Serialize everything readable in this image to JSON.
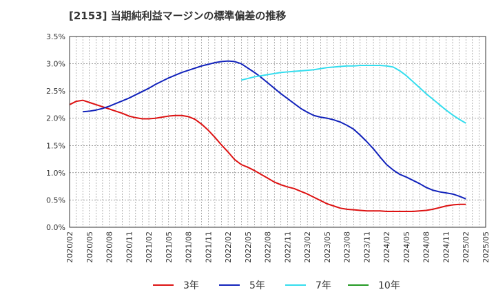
{
  "title": "[2153]  当期純利益マージンの標準偏差の推移",
  "chart_data": {
    "type": "line",
    "title": "[2153]  当期純利益マージンの標準偏差の推移",
    "xlabel": "",
    "ylabel": "",
    "x_ticks": [
      "2020/02",
      "2020/05",
      "2020/08",
      "2020/11",
      "2021/02",
      "2021/05",
      "2021/08",
      "2021/11",
      "2022/02",
      "2022/05",
      "2022/08",
      "2022/11",
      "2023/02",
      "2023/05",
      "2023/08",
      "2023/11",
      "2024/02",
      "2024/05",
      "2024/08",
      "2024/11",
      "2025/02",
      "2025/05"
    ],
    "y_ticks": [
      "0.0%",
      "0.5%",
      "1.0%",
      "1.5%",
      "2.0%",
      "2.5%",
      "3.0%",
      "3.5%"
    ],
    "ylim": [
      0,
      3.5
    ],
    "xlim": [
      "2020/02",
      "2025/05"
    ],
    "grid": true,
    "legend_position": "bottom",
    "series": [
      {
        "name": "3年",
        "color": "#dd1111",
        "points": [
          [
            "2020/02",
            2.25
          ],
          [
            "2020/03",
            2.31
          ],
          [
            "2020/04",
            2.33
          ],
          [
            "2020/05",
            2.29
          ],
          [
            "2020/06",
            2.25
          ],
          [
            "2020/07",
            2.21
          ],
          [
            "2020/08",
            2.17
          ],
          [
            "2020/09",
            2.13
          ],
          [
            "2020/10",
            2.09
          ],
          [
            "2020/11",
            2.04
          ],
          [
            "2020/12",
            2.01
          ],
          [
            "2021/01",
            1.99
          ],
          [
            "2021/02",
            1.99
          ],
          [
            "2021/03",
            2.0
          ],
          [
            "2021/04",
            2.02
          ],
          [
            "2021/05",
            2.04
          ],
          [
            "2021/06",
            2.05
          ],
          [
            "2021/07",
            2.05
          ],
          [
            "2021/08",
            2.03
          ],
          [
            "2021/09",
            1.98
          ],
          [
            "2021/10",
            1.89
          ],
          [
            "2021/11",
            1.78
          ],
          [
            "2021/12",
            1.65
          ],
          [
            "2022/01",
            1.51
          ],
          [
            "2022/02",
            1.38
          ],
          [
            "2022/03",
            1.24
          ],
          [
            "2022/04",
            1.15
          ],
          [
            "2022/05",
            1.1
          ],
          [
            "2022/06",
            1.04
          ],
          [
            "2022/07",
            0.97
          ],
          [
            "2022/08",
            0.9
          ],
          [
            "2022/09",
            0.83
          ],
          [
            "2022/10",
            0.78
          ],
          [
            "2022/11",
            0.74
          ],
          [
            "2022/12",
            0.71
          ],
          [
            "2023/01",
            0.66
          ],
          [
            "2023/02",
            0.61
          ],
          [
            "2023/03",
            0.55
          ],
          [
            "2023/04",
            0.49
          ],
          [
            "2023/05",
            0.43
          ],
          [
            "2023/06",
            0.39
          ],
          [
            "2023/07",
            0.35
          ],
          [
            "2023/08",
            0.33
          ],
          [
            "2023/09",
            0.32
          ],
          [
            "2023/10",
            0.31
          ],
          [
            "2023/11",
            0.3
          ],
          [
            "2023/12",
            0.3
          ],
          [
            "2024/01",
            0.3
          ],
          [
            "2024/02",
            0.29
          ],
          [
            "2024/03",
            0.29
          ],
          [
            "2024/04",
            0.29
          ],
          [
            "2024/05",
            0.29
          ],
          [
            "2024/06",
            0.29
          ],
          [
            "2024/07",
            0.3
          ],
          [
            "2024/08",
            0.31
          ],
          [
            "2024/09",
            0.33
          ],
          [
            "2024/10",
            0.36
          ],
          [
            "2024/11",
            0.39
          ],
          [
            "2024/12",
            0.41
          ],
          [
            "2025/01",
            0.42
          ],
          [
            "2025/02",
            0.42
          ]
        ]
      },
      {
        "name": "5年",
        "color": "#1122bb",
        "points": [
          [
            "2020/04",
            2.12
          ],
          [
            "2020/05",
            2.13
          ],
          [
            "2020/06",
            2.15
          ],
          [
            "2020/07",
            2.18
          ],
          [
            "2020/08",
            2.22
          ],
          [
            "2020/09",
            2.27
          ],
          [
            "2020/10",
            2.32
          ],
          [
            "2020/11",
            2.37
          ],
          [
            "2020/12",
            2.43
          ],
          [
            "2021/01",
            2.49
          ],
          [
            "2021/02",
            2.55
          ],
          [
            "2021/03",
            2.62
          ],
          [
            "2021/04",
            2.68
          ],
          [
            "2021/05",
            2.74
          ],
          [
            "2021/06",
            2.79
          ],
          [
            "2021/07",
            2.84
          ],
          [
            "2021/08",
            2.88
          ],
          [
            "2021/09",
            2.92
          ],
          [
            "2021/10",
            2.96
          ],
          [
            "2021/11",
            2.99
          ],
          [
            "2021/12",
            3.02
          ],
          [
            "2022/01",
            3.04
          ],
          [
            "2022/02",
            3.05
          ],
          [
            "2022/03",
            3.04
          ],
          [
            "2022/04",
            3.0
          ],
          [
            "2022/05",
            2.92
          ],
          [
            "2022/06",
            2.84
          ],
          [
            "2022/07",
            2.75
          ],
          [
            "2022/08",
            2.65
          ],
          [
            "2022/09",
            2.55
          ],
          [
            "2022/10",
            2.45
          ],
          [
            "2022/11",
            2.36
          ],
          [
            "2022/12",
            2.27
          ],
          [
            "2023/01",
            2.18
          ],
          [
            "2023/02",
            2.11
          ],
          [
            "2023/03",
            2.05
          ],
          [
            "2023/04",
            2.02
          ],
          [
            "2023/05",
            2.0
          ],
          [
            "2023/06",
            1.97
          ],
          [
            "2023/07",
            1.93
          ],
          [
            "2023/08",
            1.87
          ],
          [
            "2023/09",
            1.8
          ],
          [
            "2023/10",
            1.69
          ],
          [
            "2023/11",
            1.57
          ],
          [
            "2023/12",
            1.44
          ],
          [
            "2024/01",
            1.29
          ],
          [
            "2024/02",
            1.15
          ],
          [
            "2024/03",
            1.05
          ],
          [
            "2024/04",
            0.97
          ],
          [
            "2024/05",
            0.92
          ],
          [
            "2024/06",
            0.86
          ],
          [
            "2024/07",
            0.8
          ],
          [
            "2024/08",
            0.73
          ],
          [
            "2024/09",
            0.68
          ],
          [
            "2024/10",
            0.65
          ],
          [
            "2024/11",
            0.63
          ],
          [
            "2024/12",
            0.61
          ],
          [
            "2025/01",
            0.57
          ],
          [
            "2025/02",
            0.52
          ]
        ]
      },
      {
        "name": "7年",
        "color": "#33ddee",
        "points": [
          [
            "2022/04",
            2.7
          ],
          [
            "2022/05",
            2.73
          ],
          [
            "2022/06",
            2.76
          ],
          [
            "2022/07",
            2.78
          ],
          [
            "2022/08",
            2.8
          ],
          [
            "2022/09",
            2.82
          ],
          [
            "2022/10",
            2.84
          ],
          [
            "2022/11",
            2.85
          ],
          [
            "2022/12",
            2.86
          ],
          [
            "2023/01",
            2.87
          ],
          [
            "2023/02",
            2.88
          ],
          [
            "2023/03",
            2.89
          ],
          [
            "2023/04",
            2.91
          ],
          [
            "2023/05",
            2.93
          ],
          [
            "2023/06",
            2.94
          ],
          [
            "2023/07",
            2.95
          ],
          [
            "2023/08",
            2.96
          ],
          [
            "2023/09",
            2.96
          ],
          [
            "2023/10",
            2.97
          ],
          [
            "2023/11",
            2.97
          ],
          [
            "2023/12",
            2.97
          ],
          [
            "2024/01",
            2.97
          ],
          [
            "2024/02",
            2.96
          ],
          [
            "2024/03",
            2.94
          ],
          [
            "2024/04",
            2.87
          ],
          [
            "2024/05",
            2.78
          ],
          [
            "2024/06",
            2.67
          ],
          [
            "2024/07",
            2.56
          ],
          [
            "2024/08",
            2.45
          ],
          [
            "2024/09",
            2.35
          ],
          [
            "2024/10",
            2.25
          ],
          [
            "2024/11",
            2.15
          ],
          [
            "2024/12",
            2.06
          ],
          [
            "2025/01",
            1.98
          ],
          [
            "2025/02",
            1.91
          ]
        ]
      },
      {
        "name": "10年",
        "color": "#229922",
        "points": []
      }
    ]
  }
}
